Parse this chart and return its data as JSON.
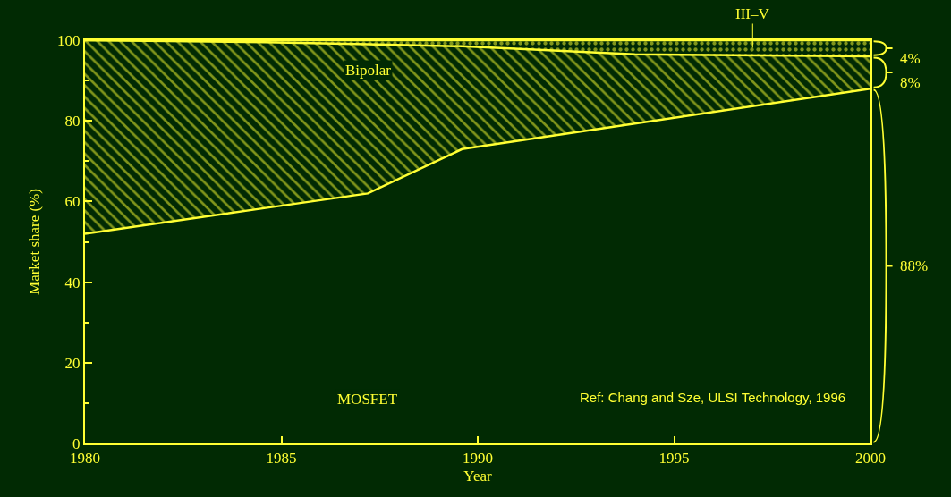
{
  "chart_data": {
    "type": "area",
    "stacked": true,
    "xlabel": "Year",
    "ylabel": "Market share (%)",
    "x": [
      1980,
      1984.6,
      1987.2,
      1989.6,
      1994,
      2000
    ],
    "series": [
      {
        "name": "MOSFET",
        "color": "#ffff33",
        "values": [
          52,
          58.4,
          62,
          73,
          79.3,
          88
        ]
      },
      {
        "name": "Bipolar",
        "color": "#ffff33",
        "values": [
          48,
          41.1,
          37,
          25.5,
          17.2,
          8
        ]
      },
      {
        "name": "III–V",
        "color": "#ffff33",
        "values": [
          0,
          0.5,
          1,
          1.5,
          3.5,
          4
        ]
      }
    ],
    "xlim": [
      1980,
      2000
    ],
    "xticks": [
      1980,
      1985,
      1990,
      1995,
      2000
    ],
    "ylim": [
      0,
      100
    ],
    "yticks": [
      0,
      20,
      40,
      60,
      80,
      100
    ],
    "legend": false,
    "annotations": [
      "4%",
      "8%",
      "88%",
      "Ref: Chang and Sze, ULSI Technology, 1996"
    ]
  }
}
